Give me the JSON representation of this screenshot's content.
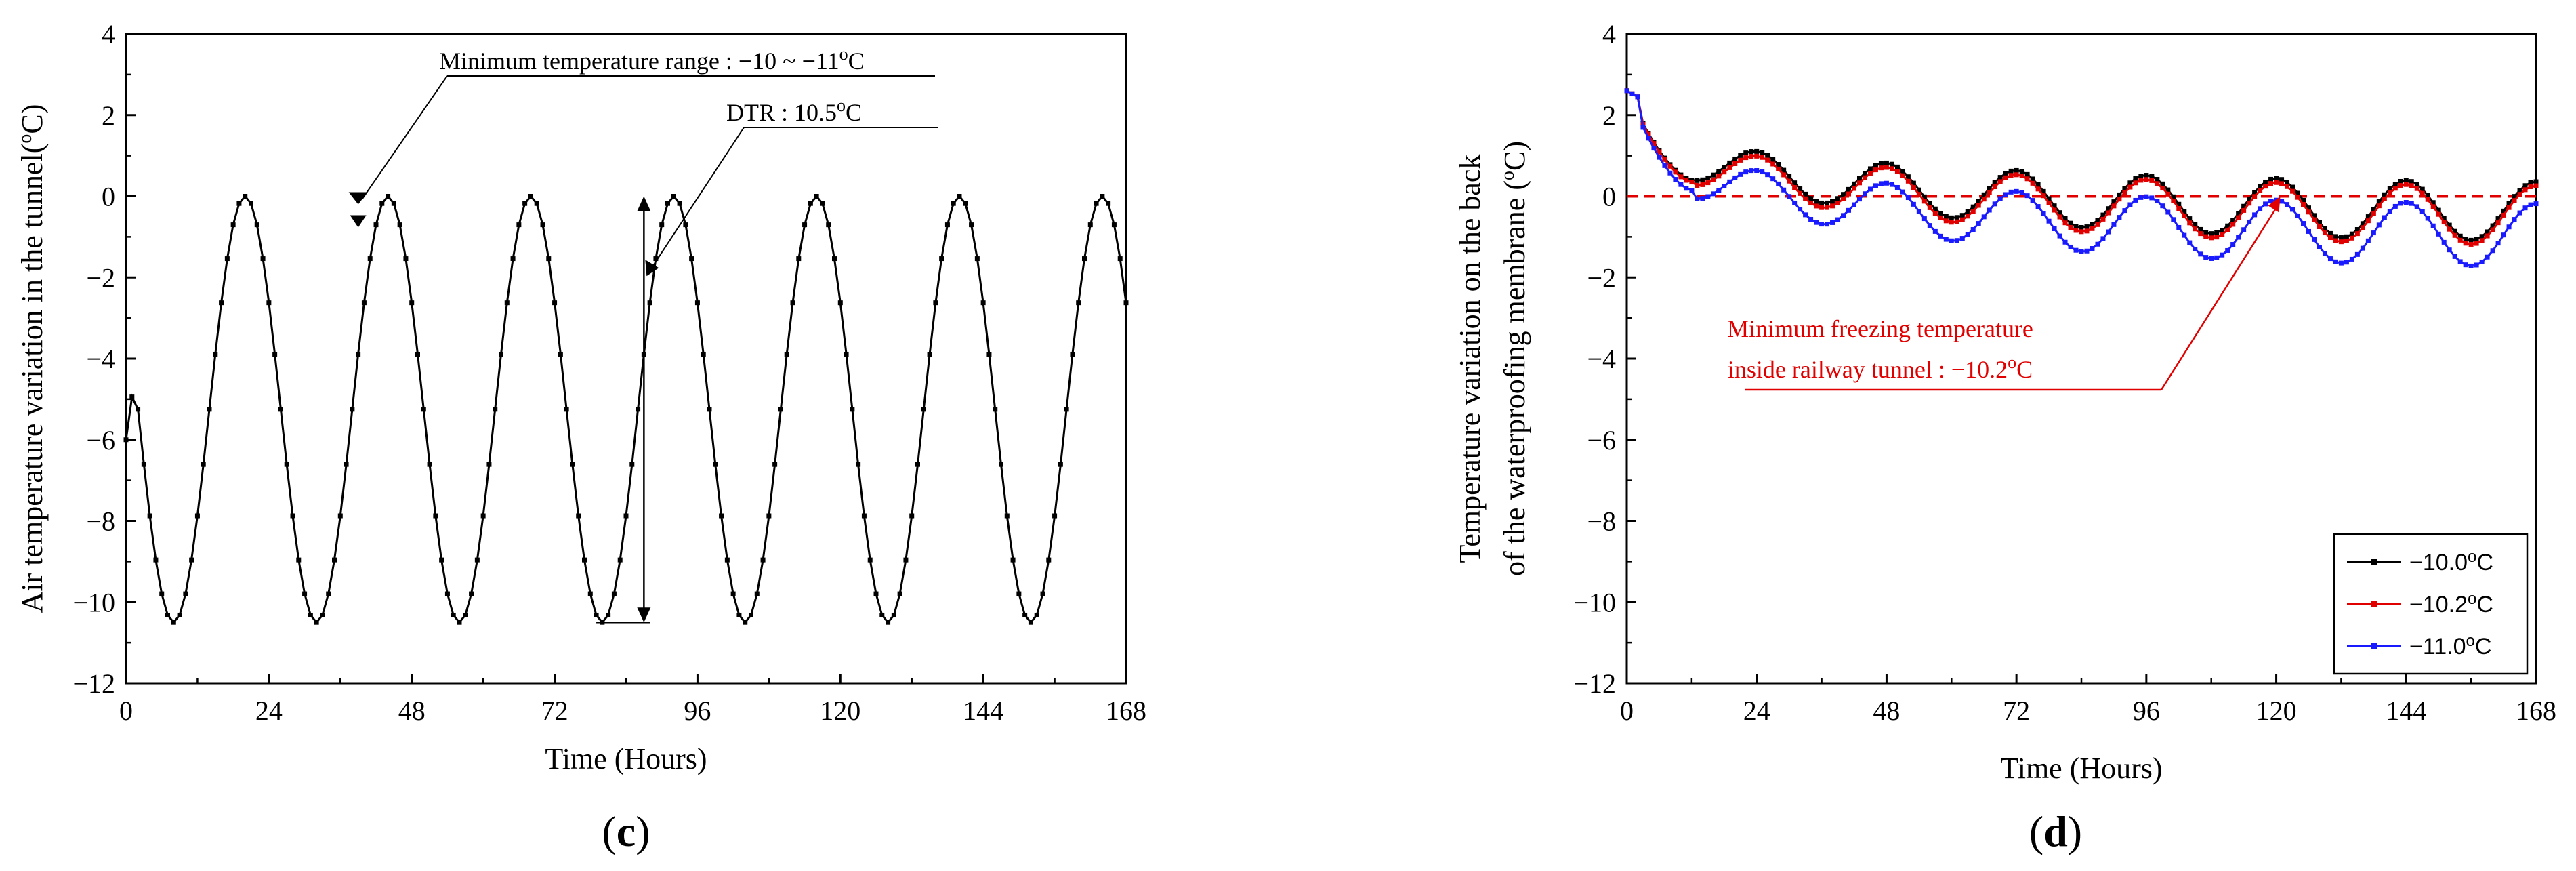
{
  "chart_data": [
    {
      "id": "c",
      "type": "line",
      "panel_label": "c",
      "xlabel": "Time (Hours)",
      "ylabel": "Air temperature variation in the tunnel (°C)",
      "ylabel_text": "Air temperature variation in the tunnel",
      "ylabel_unit": "(",
      "ylabel_unit_sup": "o",
      "ylabel_unit_end": "C)",
      "xlim": [
        0,
        168
      ],
      "ylim": [
        -12,
        4
      ],
      "xticks": [
        0,
        24,
        48,
        72,
        96,
        120,
        144,
        168
      ],
      "yticks": [
        -12,
        -10,
        -8,
        -6,
        -4,
        -2,
        0,
        2,
        4
      ],
      "series": [
        {
          "name": "Air temperature",
          "color": "#000000",
          "marker": "square",
          "period": 24,
          "mean": -5.25,
          "amplitude": 5.25,
          "min_value": -10.5,
          "max_value": 0,
          "min_hour": 8,
          "start_value": -6,
          "step": 1
        }
      ],
      "annotations": [
        {
          "id": "min-range",
          "text": "Minimum temperature range : −10 ~ −11",
          "sup": "o",
          "unit": "C",
          "target": [
            39,
            -0.2
          ]
        },
        {
          "id": "dtr",
          "text": "DTR : 10.5",
          "sup": "o",
          "unit": "C",
          "target": [
            87,
            -1.8
          ],
          "span": [
            -10.5,
            0
          ],
          "span_x": 87
        }
      ]
    },
    {
      "id": "d",
      "type": "line",
      "panel_label": "d",
      "xlabel": "Time (Hours)",
      "ylabel_line1": "Temperature variation on the back",
      "ylabel_line2": "of the waterproofing membrane (",
      "ylabel_line2_sup": "o",
      "ylabel_line2_end": "C)",
      "xlim": [
        0,
        168
      ],
      "ylim": [
        -12,
        4
      ],
      "xticks": [
        0,
        24,
        48,
        72,
        96,
        120,
        144,
        168
      ],
      "yticks": [
        -12,
        -10,
        -8,
        -6,
        -4,
        -2,
        0,
        2,
        4
      ],
      "reference_line": {
        "y": 0,
        "color": "#e00000",
        "style": "dashed"
      },
      "series": [
        {
          "name": "−10.0",
          "legend_label": "−10.0",
          "color": "#000000",
          "start": 2.6,
          "first_min": 0.4,
          "final_mean": -0.45,
          "final_amp": 0.75,
          "offset": 0.0
        },
        {
          "name": "−10.2",
          "legend_label": "−10.2",
          "color": "#e00000",
          "start": 2.6,
          "first_min": 0.35,
          "final_mean": -0.55,
          "final_amp": 0.75,
          "offset": -0.12
        },
        {
          "name": "−11.0",
          "legend_label": "−11.0",
          "color": "#1a1aff",
          "start": 2.6,
          "first_min": 0.15,
          "final_mean": -1.05,
          "final_amp": 0.8,
          "offset": -0.45
        }
      ],
      "legend": {
        "placement": "bottom-right",
        "unit_sup": "o",
        "unit": "C"
      },
      "annotations": [
        {
          "id": "min-freezing",
          "line1": "Minimum freezing temperature",
          "line2": "inside railway tunnel : −10.2",
          "sup": "o",
          "unit": "C",
          "color": "#e00000",
          "target": [
            120,
            0
          ]
        }
      ]
    }
  ]
}
